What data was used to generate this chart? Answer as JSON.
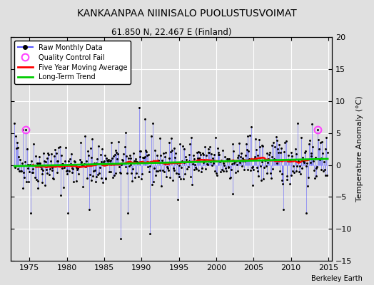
{
  "title": "KANKAANPAA NIINISALO PUOLUSTUSVOIMAT",
  "subtitle": "61.850 N, 22.467 E (Finland)",
  "ylabel": "Temperature Anomaly (°C)",
  "attribution": "Berkeley Earth",
  "ylim": [
    -15,
    20
  ],
  "xlim": [
    1972.5,
    2015.5
  ],
  "yticks": [
    -15,
    -10,
    -5,
    0,
    5,
    10,
    15,
    20
  ],
  "xticks": [
    1975,
    1980,
    1985,
    1990,
    1995,
    2000,
    2005,
    2010,
    2015
  ],
  "bg_color": "#e0e0e0",
  "raw_color": "#5555ff",
  "ma_color": "#ff0000",
  "trend_color": "#00cc00",
  "qc_color": "#ff44ff",
  "seed": 42,
  "t_start": 1973.0,
  "t_end": 2014.917
}
